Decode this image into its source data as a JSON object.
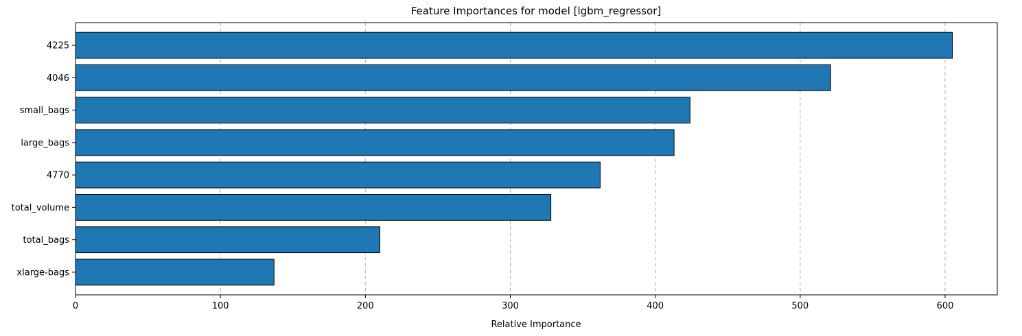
{
  "chart_data": {
    "type": "bar",
    "orientation": "horizontal",
    "title": "Feature Importances for model [lgbm_regressor]",
    "xlabel": "Relative Importance",
    "ylabel": "",
    "categories": [
      "4225",
      "4046",
      "small_bags",
      "large_bags",
      "4770",
      "total_volume",
      "total_bags",
      "xlarge-bags"
    ],
    "values": [
      605,
      521,
      424,
      413,
      362,
      328,
      210,
      137
    ],
    "xlim": [
      0,
      636
    ],
    "xticks": [
      0,
      100,
      200,
      300,
      400,
      500,
      600
    ],
    "grid": "x-dashed",
    "bar_color": "#1f77b4",
    "bar_edge_color": "#000000"
  }
}
